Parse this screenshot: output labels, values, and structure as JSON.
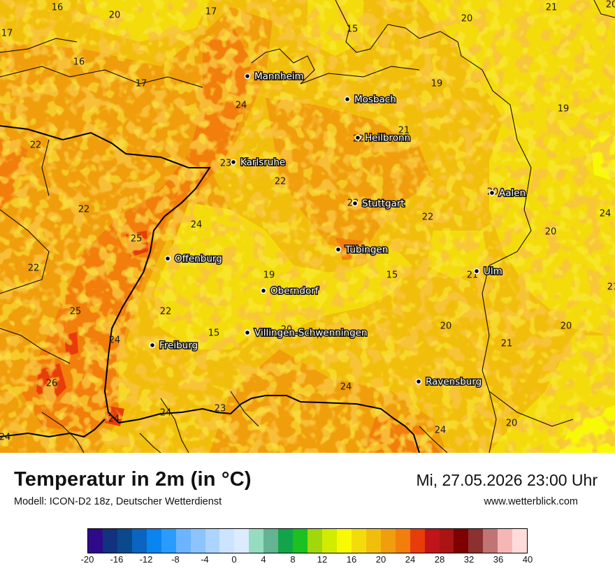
{
  "map": {
    "cities": [
      {
        "name": "Mannheim"
      },
      {
        "name": "Mosbach"
      },
      {
        "name": "Heilbronn"
      },
      {
        "name": "Karlsruhe"
      },
      {
        "name": "Aalen"
      },
      {
        "name": "Stuttgart"
      },
      {
        "name": "Tübingen"
      },
      {
        "name": "Offenburg"
      },
      {
        "name": "Ulm"
      },
      {
        "name": "Oberndorf"
      },
      {
        "name": "Villingen-Schwenningen"
      },
      {
        "name": "Freiburg"
      },
      {
        "name": "Ravensburg"
      }
    ],
    "values": [
      "16",
      "20",
      "17",
      "17",
      "20",
      "21",
      "15",
      "20",
      "16",
      "19",
      "17",
      "19",
      "24",
      "21",
      "22",
      "22",
      "22",
      "23",
      "23",
      "24",
      "22",
      "20",
      "20",
      "25",
      "24",
      "22",
      "19",
      "15",
      "21",
      "25",
      "22",
      "24",
      "15",
      "20",
      "20",
      "21",
      "26",
      "24",
      "20",
      "24",
      "23",
      "24",
      "24",
      "20",
      "24",
      "22",
      "21"
    ]
  },
  "footer": {
    "title": "Temperatur in 2m (in °C)",
    "model": "Modell: ICON-D2 18z, Deutscher Wetterdienst",
    "datetime": "Mi, 27.05.2026 23:00 Uhr",
    "site": "www.wetterblick.com"
  },
  "colorbar": {
    "colors": [
      "#2e0a8a",
      "#12327f",
      "#0a4a8c",
      "#0a64c0",
      "#0a84ee",
      "#2a9cff",
      "#6cb4ff",
      "#8cc4ff",
      "#acd4ff",
      "#cce4ff",
      "#dcecff",
      "#96dcc0",
      "#64b494",
      "#12a44a",
      "#1cc020",
      "#a0d80c",
      "#d2ec00",
      "#f8fa04",
      "#f4dc0c",
      "#f2be0c",
      "#f09e0c",
      "#f27e0c",
      "#e83c0a",
      "#c0141a",
      "#aa1414",
      "#7e0000",
      "#8c3030",
      "#c07474",
      "#f6b6b6",
      "#ffdcdc"
    ],
    "tick_labels": [
      "-20",
      "-16",
      "-12",
      "-8",
      "-4",
      "0",
      "4",
      "8",
      "12",
      "16",
      "20",
      "24",
      "28",
      "32",
      "36",
      "40"
    ]
  }
}
